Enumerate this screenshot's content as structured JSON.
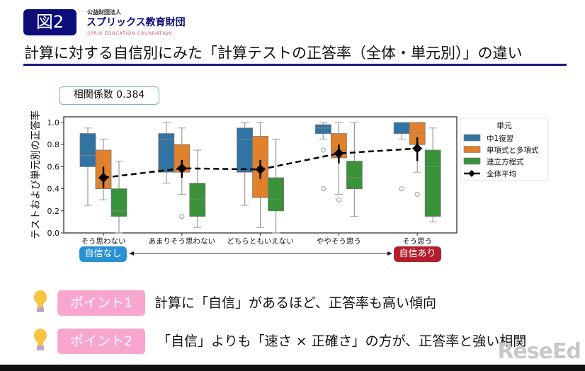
{
  "header": {
    "figure_label": "図2",
    "org_small": "公益財団法人",
    "org_name": "スプリックス教育財団",
    "org_en": "SPRIX EDUCATION FOUNDATION",
    "title": "計算に対する自信別にみた「計算テストの正答率（全体・単元別）」の違い"
  },
  "correlation": "相関係数 0.384",
  "confidence": {
    "low": "自信なし",
    "high": "自信あり"
  },
  "points": [
    {
      "label": "ポイント1",
      "text": "計算に「自信」があるほど、正答率も高い傾向"
    },
    {
      "label": "ポイント2",
      "text": "「自信」よりも「速さ × 正確さ」の方が、正答率と強い相関"
    }
  ],
  "watermark": "ReseEd",
  "chart_data": {
    "type": "box",
    "ylabel": "テストおよび単元別の正答率",
    "ylim": [
      0,
      1.05
    ],
    "yticks": [
      "0.0",
      "0.2",
      "0.4",
      "0.6",
      "0.8",
      "1.0"
    ],
    "categories": [
      "そう思わない",
      "あまりそう思わない",
      "どちらともいえない",
      "ややそう思う",
      "そう思う"
    ],
    "legend": {
      "title": "単元",
      "placement": "outside-right"
    },
    "series": [
      {
        "name": "中1復習",
        "color": "#3274a1",
        "boxes": [
          {
            "low": 0.25,
            "q1": 0.6,
            "med": 0.7,
            "q3": 0.9,
            "high": 0.95,
            "out": []
          },
          {
            "low": 0.45,
            "q1": 0.55,
            "med": 0.85,
            "q3": 0.9,
            "high": 1.0,
            "out": []
          },
          {
            "low": 0.25,
            "q1": 0.55,
            "med": 0.85,
            "q3": 0.95,
            "high": 1.0,
            "out": []
          },
          {
            "low": 0.85,
            "q1": 0.9,
            "med": 0.95,
            "q3": 0.98,
            "high": 1.0,
            "out": [
              0.75,
              0.4
            ]
          },
          {
            "low": 0.85,
            "q1": 0.9,
            "med": 1.0,
            "q3": 1.0,
            "high": 1.0,
            "out": [
              0.4
            ]
          }
        ]
      },
      {
        "name": "単項式と多項式",
        "color": "#e1812c",
        "boxes": [
          {
            "low": 0.3,
            "q1": 0.4,
            "med": 0.45,
            "q3": 0.75,
            "high": 0.85,
            "out": []
          },
          {
            "low": 0.35,
            "q1": 0.55,
            "med": 0.65,
            "q3": 0.8,
            "high": 0.95,
            "out": [
              0.15
            ]
          },
          {
            "low": 0.05,
            "q1": 0.32,
            "med": 0.65,
            "q3": 0.875,
            "high": 1.0,
            "out": []
          },
          {
            "low": 0.35,
            "q1": 0.68,
            "med": 0.75,
            "q3": 0.9,
            "high": 1.0,
            "out": [
              0.3
            ]
          },
          {
            "low": 0.55,
            "q1": 0.8,
            "med": 0.9,
            "q3": 1.0,
            "high": 1.0,
            "out": [
              0.35
            ]
          }
        ]
      },
      {
        "name": "連立方程式",
        "color": "#3a923a",
        "boxes": [
          {
            "low": 0.0,
            "q1": 0.15,
            "med": 0.2,
            "q3": 0.4,
            "high": 0.65,
            "out": []
          },
          {
            "low": 0.05,
            "q1": 0.15,
            "med": 0.3,
            "q3": 0.45,
            "high": 0.75,
            "out": []
          },
          {
            "low": 0.0,
            "q1": 0.2,
            "med": 0.3,
            "q3": 0.5,
            "high": 0.85,
            "out": []
          },
          {
            "low": 0.15,
            "q1": 0.4,
            "med": 0.5,
            "q3": 0.65,
            "high": 1.0,
            "out": []
          },
          {
            "low": 0.1,
            "q1": 0.15,
            "med": 0.6,
            "q3": 0.75,
            "high": 0.95,
            "out": []
          }
        ]
      }
    ],
    "mean": {
      "name": "全体平均",
      "color": "#000000",
      "values": [
        0.5,
        0.585,
        0.575,
        0.72,
        0.765
      ],
      "err_low": [
        0.41,
        0.5,
        0.49,
        0.63,
        0.65
      ],
      "err_high": [
        0.6,
        0.66,
        0.66,
        0.8,
        0.865
      ]
    }
  }
}
